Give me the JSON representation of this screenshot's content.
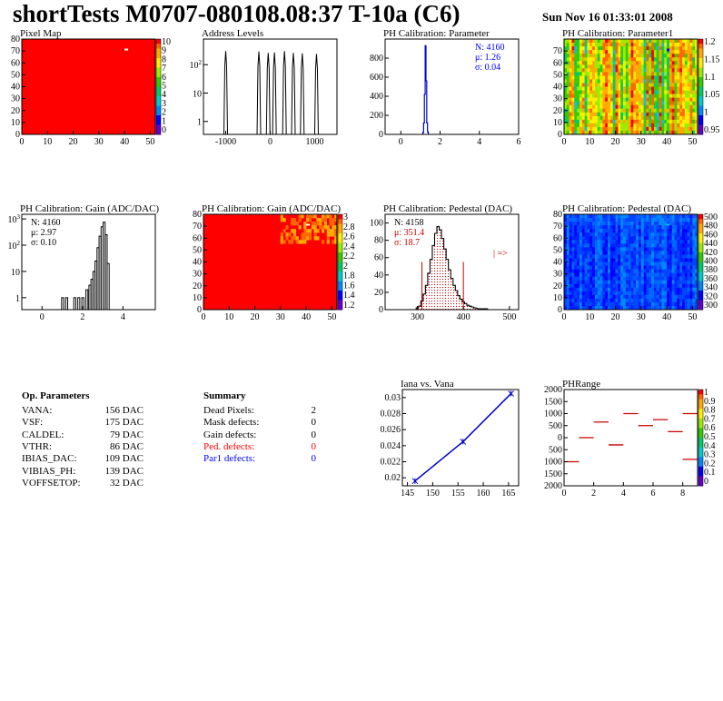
{
  "header": {
    "title": "shortTests M0707-080108.08:37 T-10a (C6)",
    "date": "Sun Nov 16 01:33:01 2008"
  },
  "chart_data": [
    {
      "id": "pixel-map",
      "type": "heatmap",
      "title": "Pixel Map",
      "xlim": [
        0,
        52
      ],
      "ylim": [
        0,
        80
      ],
      "xticks": [
        "0",
        "10",
        "20",
        "30",
        "40",
        "50"
      ],
      "yticks": [
        "0",
        "10",
        "20",
        "30",
        "40",
        "50",
        "60",
        "70",
        "80"
      ],
      "zlim": [
        0,
        10
      ],
      "zticks": [
        "0",
        "1",
        "2",
        "3",
        "4",
        "5",
        "6",
        "7",
        "8",
        "9",
        "10"
      ],
      "fill": "uniform red (10)",
      "outliers": [
        {
          "x": 40,
          "y": 72,
          "z": 0
        }
      ]
    },
    {
      "id": "address-levels",
      "type": "bar",
      "title": "Address Levels",
      "xlim": [
        -1500,
        1500
      ],
      "log_y": true,
      "xticks": [
        "-1000",
        "0",
        "1000"
      ],
      "yticks": [
        {
          "base": "10",
          "exp": "2"
        },
        {
          "base": "10",
          "exp": ""
        },
        {
          "base": "1",
          "exp": ""
        }
      ],
      "peaks": [
        {
          "x": -1000,
          "y": 300
        },
        {
          "x": -255,
          "y": 290
        },
        {
          "x": -45,
          "y": 260
        },
        {
          "x": 95,
          "y": 270
        },
        {
          "x": 320,
          "y": 300
        },
        {
          "x": 520,
          "y": 260
        },
        {
          "x": 720,
          "y": 250
        },
        {
          "x": 1040,
          "y": 240
        }
      ]
    },
    {
      "id": "ph-cal-parameter",
      "type": "bar",
      "title": "PH Calibration: Parameter",
      "xlim": [
        -0.8,
        6
      ],
      "ylim": [
        0,
        1000
      ],
      "xticks": [
        "0",
        "2",
        "4",
        "6"
      ],
      "yticks": [
        "0",
        "200",
        "400",
        "600",
        "800"
      ],
      "stats": {
        "n": "N: 4160",
        "mu": "μ: 1.26",
        "sigma": "σ: 0.04"
      },
      "bins": [
        {
          "x": 1.14,
          "y": 20
        },
        {
          "x": 1.18,
          "y": 120
        },
        {
          "x": 1.22,
          "y": 420
        },
        {
          "x": 1.26,
          "y": 930
        },
        {
          "x": 1.3,
          "y": 560
        },
        {
          "x": 1.34,
          "y": 120
        },
        {
          "x": 1.38,
          "y": 25
        }
      ]
    },
    {
      "id": "ph-cal-parameter1",
      "type": "heatmap",
      "title": "PH Calibration: Parameter1",
      "xlim": [
        0,
        52
      ],
      "ylim": [
        0,
        80
      ],
      "xticks": [
        "0",
        "10",
        "20",
        "30",
        "40",
        "50"
      ],
      "yticks": [
        "0",
        "10",
        "20",
        "30",
        "40",
        "50",
        "60",
        "70"
      ],
      "zticks": [
        "1.2",
        "1.15",
        "1.1",
        "1.05",
        "1",
        "0.95"
      ],
      "fill": "column-striped red/orange/yellow/green"
    },
    {
      "id": "ph-cal-gain-hist",
      "type": "bar",
      "title": "PH Calibration: Gain (ADC/DAC)",
      "xlim": [
        -1,
        5.6
      ],
      "log_y": true,
      "xticks": [
        "0",
        "2",
        "4"
      ],
      "yticks": [
        {
          "base": "10",
          "exp": "3"
        },
        {
          "base": "10",
          "exp": "2"
        },
        {
          "base": "10",
          "exp": ""
        },
        {
          "base": "1",
          "exp": ""
        }
      ],
      "stats": {
        "n": "N: 4160",
        "mu": "μ: 2.97",
        "sigma": "σ: 0.10"
      },
      "bins": [
        {
          "x": 1.0,
          "y": 1
        },
        {
          "x": 1.2,
          "y": 1
        },
        {
          "x": 1.6,
          "y": 1
        },
        {
          "x": 1.8,
          "y": 1
        },
        {
          "x": 2.0,
          "y": 1
        },
        {
          "x": 2.2,
          "y": 2
        },
        {
          "x": 2.35,
          "y": 3
        },
        {
          "x": 2.45,
          "y": 5
        },
        {
          "x": 2.55,
          "y": 10
        },
        {
          "x": 2.65,
          "y": 25
        },
        {
          "x": 2.75,
          "y": 80
        },
        {
          "x": 2.85,
          "y": 220
        },
        {
          "x": 2.95,
          "y": 500
        },
        {
          "x": 3.05,
          "y": 750
        },
        {
          "x": 3.15,
          "y": 250
        },
        {
          "x": 3.25,
          "y": 20
        }
      ]
    },
    {
      "id": "ph-cal-gain-map",
      "type": "heatmap",
      "title": "PH Calibration: Gain (ADC/DAC)",
      "xlim": [
        0,
        52
      ],
      "ylim": [
        0,
        80
      ],
      "xticks": [
        "0",
        "10",
        "20",
        "30",
        "40",
        "50"
      ],
      "yticks": [
        "0",
        "10",
        "20",
        "30",
        "40",
        "50",
        "60",
        "70",
        "80"
      ],
      "zticks": [
        "3",
        "2.8",
        "2.6",
        "2.4",
        "2.2",
        "2",
        "1.8",
        "1.6",
        "1.4",
        "1.2"
      ],
      "fill": "mostly red, orange in upper right"
    },
    {
      "id": "ph-cal-pedestal-hist",
      "type": "bar",
      "title": "PH Calibration: Pedestal (DAC)",
      "xlim": [
        230,
        520
      ],
      "ylim": [
        0,
        110
      ],
      "xticks": [
        "300",
        "400",
        "500"
      ],
      "yticks": [
        "0",
        "20",
        "40",
        "60",
        "80",
        "100"
      ],
      "stats": {
        "n": "N: 4158",
        "mu": "μ: 351.4",
        "sigma": "σ: 18.7"
      },
      "cut_lines": [
        310,
        400
      ],
      "annotation": "| =>",
      "bins": [
        {
          "x": 300,
          "y": 2
        },
        {
          "x": 305,
          "y": 4
        },
        {
          "x": 310,
          "y": 10
        },
        {
          "x": 315,
          "y": 18
        },
        {
          "x": 320,
          "y": 28
        },
        {
          "x": 325,
          "y": 42
        },
        {
          "x": 330,
          "y": 58
        },
        {
          "x": 335,
          "y": 74
        },
        {
          "x": 340,
          "y": 88
        },
        {
          "x": 345,
          "y": 96
        },
        {
          "x": 350,
          "y": 92
        },
        {
          "x": 355,
          "y": 82
        },
        {
          "x": 360,
          "y": 70
        },
        {
          "x": 365,
          "y": 58
        },
        {
          "x": 370,
          "y": 46
        },
        {
          "x": 375,
          "y": 36
        },
        {
          "x": 380,
          "y": 28
        },
        {
          "x": 385,
          "y": 22
        },
        {
          "x": 390,
          "y": 16
        },
        {
          "x": 395,
          "y": 12
        },
        {
          "x": 400,
          "y": 9
        },
        {
          "x": 405,
          "y": 7
        },
        {
          "x": 410,
          "y": 5
        },
        {
          "x": 415,
          "y": 4
        },
        {
          "x": 420,
          "y": 3
        },
        {
          "x": 425,
          "y": 2
        },
        {
          "x": 435,
          "y": 1
        },
        {
          "x": 450,
          "y": 1
        }
      ]
    },
    {
      "id": "ph-cal-pedestal-map",
      "type": "heatmap",
      "title": "PH Calibration: Pedestal (DAC)",
      "xlim": [
        0,
        52
      ],
      "ylim": [
        0,
        80
      ],
      "xticks": [
        "0",
        "10",
        "20",
        "30",
        "40",
        "50"
      ],
      "yticks": [
        "0",
        "10",
        "20",
        "30",
        "40",
        "50",
        "60",
        "70",
        "80"
      ],
      "zticks": [
        "500",
        "480",
        "460",
        "440",
        "420",
        "400",
        "380",
        "360",
        "340",
        "320",
        "300"
      ],
      "fill": "column-striped blue"
    },
    {
      "id": "iana-vs-vana",
      "type": "line",
      "title": "Iana vs. Vana",
      "xlim": [
        144,
        167
      ],
      "ylim": [
        0.019,
        0.031
      ],
      "xticks": [
        "145",
        "150",
        "155",
        "160",
        "165"
      ],
      "yticks": [
        "0.02",
        "0.022",
        "0.024",
        "0.026",
        "0.028",
        "0.03"
      ],
      "points": [
        {
          "x": 146.5,
          "y": 0.0196
        },
        {
          "x": 156,
          "y": 0.0245
        },
        {
          "x": 165.5,
          "y": 0.0305
        }
      ]
    },
    {
      "id": "ph-range",
      "type": "scatter",
      "title": "PHRange",
      "xlim": [
        0,
        9
      ],
      "ylim": [
        -2000,
        2000
      ],
      "xticks": [
        "0",
        "2",
        "4",
        "6",
        "8"
      ],
      "yticks": [
        "2000",
        "1500",
        "1000",
        "500",
        "0",
        "500",
        "1000",
        "1500",
        "2000"
      ],
      "zticks": [
        "1",
        "0.9",
        "0.8",
        "0.7",
        "0.6",
        "0.5",
        "0.4",
        "0.3",
        "0.2",
        "0.1",
        "0"
      ],
      "segments": [
        {
          "x": 0,
          "y": -1000
        },
        {
          "x": 1,
          "y": 0
        },
        {
          "x": 2,
          "y": 650
        },
        {
          "x": 3,
          "y": -300
        },
        {
          "x": 4,
          "y": 1000
        },
        {
          "x": 5,
          "y": 500
        },
        {
          "x": 6,
          "y": 750
        },
        {
          "x": 7,
          "y": 250
        },
        {
          "x": 8,
          "y": 1000
        },
        {
          "x": 8,
          "y": -900
        }
      ]
    }
  ],
  "op_params": {
    "title": "Op. Parameters",
    "rows": [
      {
        "label": "VANA:",
        "value": "156 DAC"
      },
      {
        "label": "VSF:",
        "value": "175 DAC"
      },
      {
        "label": "CALDEL:",
        "value": "79 DAC"
      },
      {
        "label": "VTHR:",
        "value": "86 DAC"
      },
      {
        "label": "IBIAS_DAC:",
        "value": "109 DAC"
      },
      {
        "label": "VIBIAS_PH:",
        "value": "139 DAC"
      },
      {
        "label": "VOFFSETOP:",
        "value": "32 DAC"
      }
    ]
  },
  "summary": {
    "title": "Summary",
    "rows": [
      {
        "label": "Dead Pixels:",
        "value": "2",
        "color": "#000000"
      },
      {
        "label": "Mask defects:",
        "value": "0",
        "color": "#000000"
      },
      {
        "label": "Gain defects:",
        "value": "0",
        "color": "#000000"
      },
      {
        "label": "Ped. defects:",
        "value": "0",
        "color": "#ff0000"
      },
      {
        "label": "Par1 defects:",
        "value": "0",
        "color": "#0000ff"
      }
    ]
  }
}
